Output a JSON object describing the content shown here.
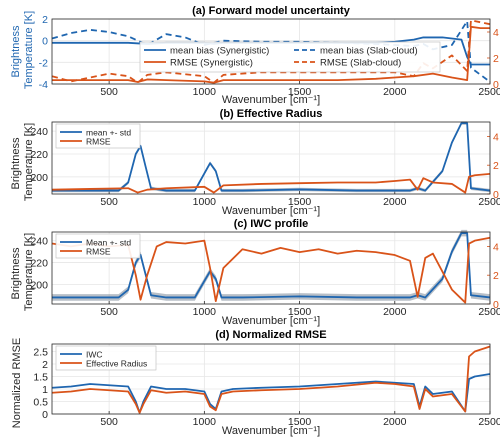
{
  "colors": {
    "blue": "#1f66b0",
    "orange": "#d95319",
    "band": "#7d8a99",
    "axis": "#262626",
    "grid": "#e6e6e6"
  },
  "chart_data": [
    {
      "type": "line",
      "title": "(a) Forward model uncertainty",
      "xlabel": "Wavenumber [cm⁻¹]",
      "ylabel": "Brightness Temperature [K]",
      "y2label": "",
      "xlim": [
        200,
        2500
      ],
      "ylim": [
        -4,
        2
      ],
      "y2lim": [
        0,
        5
      ],
      "x_ticks": [
        "500",
        "1000",
        "1500",
        "2000",
        "2500"
      ],
      "y_ticks": [
        "-4",
        "-2",
        "0",
        "2"
      ],
      "y2_ticks": [
        "0",
        "2",
        "4"
      ],
      "legend": "inside-center",
      "series": [
        {
          "name": "mean bias (Synergistic)",
          "axis": "left",
          "color": "blue",
          "dash": false,
          "x": [
            200,
            400,
            600,
            700,
            800,
            1000,
            1050,
            1100,
            1300,
            1500,
            1700,
            1900,
            2000,
            2100,
            2150,
            2250,
            2350,
            2380,
            2400,
            2500
          ],
          "y": [
            -0.2,
            -0.2,
            -0.2,
            -0.3,
            -0.2,
            -0.2,
            -0.3,
            -0.2,
            -0.2,
            -0.2,
            -0.2,
            -0.2,
            -0.1,
            0.1,
            0.3,
            0.3,
            0.1,
            -1.5,
            -2.2,
            -2.2
          ]
        },
        {
          "name": "mean bias (Slab-cloud)",
          "axis": "left",
          "color": "blue",
          "dash": true,
          "x": [
            200,
            300,
            400,
            500,
            600,
            700,
            800,
            900,
            1000,
            1050,
            1100,
            1300,
            1500,
            1700,
            1900,
            2000,
            2100,
            2150,
            2200,
            2300,
            2380,
            2400,
            2500
          ],
          "y": [
            0.2,
            0.7,
            1.0,
            0.8,
            0.4,
            -0.4,
            0.6,
            0.3,
            -0.4,
            -0.2,
            0.0,
            -0.1,
            -0.1,
            -0.2,
            -0.3,
            -0.4,
            -0.5,
            -0.3,
            -0.8,
            -0.4,
            1.8,
            -2.5,
            -3.8
          ]
        },
        {
          "name": "RMSE (Synergistic)",
          "axis": "right",
          "color": "orange",
          "dash": false,
          "x": [
            200,
            400,
            600,
            650,
            700,
            800,
            1000,
            1050,
            1100,
            1300,
            1500,
            1700,
            1900,
            2000,
            2100,
            2200,
            2300,
            2380,
            2400,
            2450,
            2500
          ],
          "y": [
            0.3,
            0.3,
            0.3,
            0.15,
            0.35,
            0.3,
            0.2,
            0.1,
            0.3,
            0.3,
            0.3,
            0.3,
            0.4,
            0.5,
            0.6,
            0.8,
            0.5,
            0.3,
            4.4,
            4.3,
            4.3
          ]
        },
        {
          "name": "RMSE (Slab-cloud)",
          "axis": "right",
          "color": "orange",
          "dash": true,
          "x": [
            200,
            300,
            400,
            500,
            600,
            650,
            700,
            800,
            1000,
            1050,
            1100,
            1300,
            1500,
            1700,
            1900,
            2000,
            2100,
            2150,
            2200,
            2300,
            2380,
            2400,
            2500
          ],
          "y": [
            0.6,
            0.2,
            0.5,
            0.8,
            0.6,
            0.1,
            0.7,
            0.9,
            0.6,
            0.1,
            0.7,
            0.9,
            0.9,
            0.9,
            0.9,
            0.9,
            0.6,
            1.6,
            1.2,
            2.2,
            1.0,
            4.9,
            4.6
          ]
        }
      ]
    },
    {
      "type": "line",
      "title": "(b) Effective Radius",
      "xlabel": "Wavenumber [cm⁻¹]",
      "ylabel": "Brightness Temperature [K]",
      "y2label": "",
      "xlim": [
        200,
        2500
      ],
      "ylim": [
        185,
        248
      ],
      "y2lim": [
        0,
        5
      ],
      "x_ticks": [
        "500",
        "1000",
        "1500",
        "2000",
        "2500"
      ],
      "y_ticks": [
        "200",
        "220",
        "240"
      ],
      "y2_ticks": [
        "0",
        "2",
        "4"
      ],
      "legend": "top-left",
      "series": [
        {
          "name": "mean +- std",
          "axis": "left",
          "color": "blue",
          "band": 1.5,
          "x": [
            200,
            400,
            550,
            600,
            640,
            665,
            690,
            720,
            800,
            950,
            1000,
            1030,
            1060,
            1090,
            1200,
            1500,
            1800,
            2000,
            2080,
            2120,
            2160,
            2250,
            2300,
            2350,
            2380,
            2400,
            2500
          ],
          "y": [
            188,
            188,
            188,
            195,
            220,
            227,
            210,
            190,
            188,
            188,
            203,
            212,
            205,
            188,
            188,
            189,
            188,
            188,
            188,
            190,
            188,
            205,
            230,
            247,
            247,
            190,
            188
          ]
        },
        {
          "name": "RMSE",
          "axis": "right",
          "color": "orange",
          "x": [
            200,
            400,
            600,
            650,
            700,
            800,
            1000,
            1050,
            1100,
            1300,
            1500,
            1700,
            1900,
            2000,
            2080,
            2120,
            2150,
            2200,
            2300,
            2370,
            2390,
            2420,
            2500
          ],
          "y": [
            0.3,
            0.35,
            0.4,
            0.1,
            0.3,
            0.4,
            0.5,
            0.1,
            0.6,
            0.7,
            0.75,
            0.8,
            0.8,
            0.9,
            1.0,
            0.3,
            1.1,
            0.8,
            0.7,
            0.1,
            1.2,
            1.3,
            1.4
          ]
        }
      ]
    },
    {
      "type": "line",
      "title": "(c) IWC profile",
      "xlabel": "Wavenumber [cm⁻¹]",
      "ylabel": "Brightness Temperature [K]",
      "y2label": "",
      "xlim": [
        200,
        2500
      ],
      "ylim": [
        182,
        248
      ],
      "y2lim": [
        0,
        5
      ],
      "x_ticks": [
        "500",
        "1000",
        "1500",
        "2000",
        "2500"
      ],
      "y_ticks": [
        "200",
        "220",
        "240"
      ],
      "y2_ticks": [
        "0",
        "2",
        "4"
      ],
      "legend": "top-left",
      "series": [
        {
          "name": "Mean +- std",
          "axis": "left",
          "color": "blue",
          "band": 3,
          "x": [
            200,
            400,
            550,
            600,
            640,
            665,
            690,
            720,
            800,
            950,
            1000,
            1030,
            1060,
            1090,
            1200,
            1500,
            1800,
            2000,
            2080,
            2120,
            2160,
            2250,
            2300,
            2350,
            2380,
            2400,
            2500
          ],
          "y": [
            188,
            188,
            188,
            195,
            220,
            227,
            210,
            190,
            188,
            188,
            203,
            212,
            205,
            188,
            188,
            189,
            188,
            188,
            188,
            190,
            188,
            205,
            230,
            247,
            247,
            190,
            188
          ]
        },
        {
          "name": "RMSE",
          "axis": "right",
          "color": "orange",
          "x": [
            200,
            300,
            400,
            500,
            600,
            640,
            665,
            700,
            750,
            800,
            900,
            1000,
            1030,
            1060,
            1100,
            1200,
            1300,
            1400,
            1500,
            1600,
            1700,
            1800,
            1900,
            2000,
            2080,
            2120,
            2160,
            2200,
            2300,
            2370,
            2390,
            2420,
            2500
          ],
          "y": [
            4.2,
            4.0,
            4.2,
            4.0,
            4.1,
            2.0,
            0.3,
            2.0,
            4.0,
            4.3,
            4.2,
            4.4,
            2.5,
            0.2,
            2.5,
            3.8,
            3.5,
            3.9,
            3.6,
            3.8,
            3.5,
            3.7,
            3.6,
            3.4,
            3.0,
            0.5,
            3.2,
            3.5,
            1.0,
            0.1,
            4.2,
            4.4,
            4.6
          ]
        }
      ]
    },
    {
      "type": "line",
      "title": "(d) Normalized RMSE",
      "xlabel": "Wavenumber [cm⁻¹]",
      "ylabel": "Normalized RMSE",
      "xlim": [
        200,
        2500
      ],
      "ylim": [
        0,
        2.8
      ],
      "x_ticks": [
        "500",
        "1000",
        "1500",
        "2000",
        "2500"
      ],
      "y_ticks": [
        "0",
        "0.5",
        "1",
        "1.5",
        "2",
        "2.5"
      ],
      "legend": "top-left",
      "series": [
        {
          "name": "IWC",
          "axis": "left",
          "color": "blue",
          "x": [
            200,
            300,
            400,
            500,
            600,
            640,
            660,
            680,
            720,
            800,
            900,
            1000,
            1030,
            1060,
            1090,
            1150,
            1300,
            1500,
            1700,
            1900,
            2000,
            2100,
            2130,
            2160,
            2200,
            2300,
            2370,
            2390,
            2420,
            2500
          ],
          "y": [
            1.05,
            1.1,
            1.2,
            1.15,
            1.1,
            0.5,
            0.05,
            0.5,
            1.1,
            1.0,
            1.0,
            0.9,
            0.4,
            0.2,
            0.9,
            1.0,
            1.05,
            1.1,
            1.2,
            1.3,
            1.25,
            1.2,
            0.3,
            1.1,
            0.8,
            0.9,
            0.1,
            1.4,
            1.5,
            1.6
          ]
        },
        {
          "name": "Effective Radius",
          "axis": "left",
          "color": "orange",
          "x": [
            200,
            300,
            400,
            500,
            600,
            640,
            660,
            680,
            720,
            800,
            900,
            1000,
            1030,
            1060,
            1090,
            1150,
            1300,
            1500,
            1700,
            1900,
            2000,
            2100,
            2130,
            2160,
            2200,
            2300,
            2370,
            2390,
            2420,
            2500
          ],
          "y": [
            0.85,
            0.9,
            1.0,
            0.95,
            0.9,
            0.4,
            0.05,
            0.4,
            0.95,
            0.85,
            0.9,
            0.8,
            0.3,
            0.15,
            0.8,
            0.9,
            0.95,
            1.0,
            1.1,
            1.25,
            1.2,
            1.1,
            0.2,
            1.0,
            0.7,
            0.8,
            0.1,
            2.3,
            2.5,
            2.7
          ]
        }
      ]
    }
  ]
}
